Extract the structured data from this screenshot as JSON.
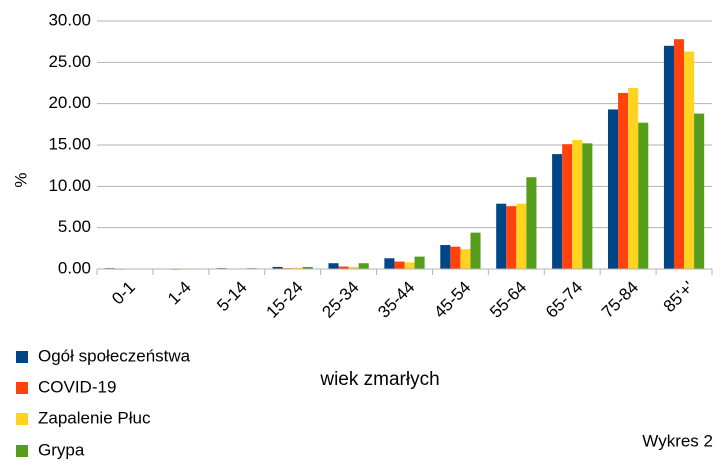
{
  "chart_data": {
    "type": "bar",
    "categories": [
      "0-1",
      "1-4",
      "5-14",
      "15-24",
      "25-34",
      "35-44",
      "45-54",
      "55-64",
      "65-74",
      "75-84",
      "85'+'"
    ],
    "series": [
      {
        "name": "Ogół społeczeństwa",
        "color": "#004586",
        "values": [
          0.1,
          0.05,
          0.1,
          0.25,
          0.7,
          1.3,
          2.9,
          7.9,
          13.9,
          19.3,
          27.0
        ]
      },
      {
        "name": "COVID-19",
        "color": "#ff420e",
        "values": [
          0.02,
          0.01,
          0.05,
          0.1,
          0.3,
          0.9,
          2.7,
          7.6,
          15.1,
          21.3,
          27.8
        ]
      },
      {
        "name": "Zapalenie Płuc",
        "color": "#ffd320",
        "values": [
          0.05,
          0.02,
          0.05,
          0.15,
          0.25,
          0.8,
          2.4,
          7.9,
          15.6,
          21.9,
          26.3
        ]
      },
      {
        "name": "Grypa",
        "color": "#579d1c",
        "values": [
          0.05,
          0.03,
          0.1,
          0.25,
          0.7,
          1.5,
          4.4,
          11.1,
          15.2,
          17.7,
          18.8
        ]
      }
    ],
    "ylabel": "%",
    "xlabel": "wiek zmarłych",
    "annotation": "Wykres 2",
    "ylim": [
      0,
      30
    ],
    "yticks": [
      {
        "value": 0,
        "label": "0.00"
      },
      {
        "value": 5,
        "label": "5.00"
      },
      {
        "value": 10,
        "label": "10.00"
      },
      {
        "value": 15,
        "label": "15.00"
      },
      {
        "value": 20,
        "label": "20.00"
      },
      {
        "value": 25,
        "label": "25.00"
      },
      {
        "value": 30,
        "label": "30.00"
      }
    ],
    "grid": true,
    "legend": "bottom-left"
  }
}
